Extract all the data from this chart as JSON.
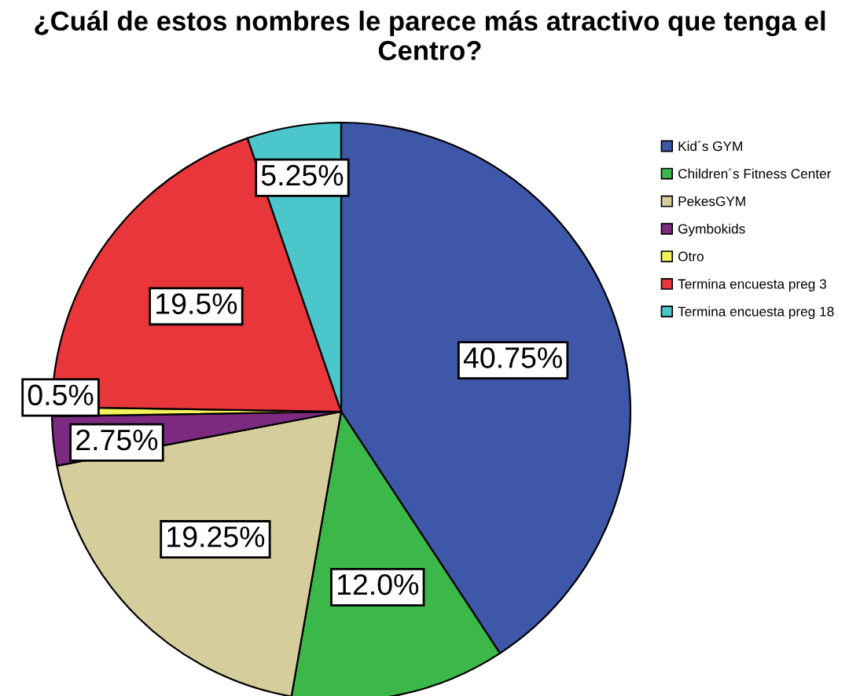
{
  "chart_data": {
    "type": "pie",
    "title": "¿Cuál de estos nombres le parece más atractivo que tenga el Centro?",
    "categories": [
      "Kid´s GYM",
      "Children´s Fitness Center",
      "PekesGYM",
      "Gymbokids",
      "Otro",
      "Termina encuesta preg 3",
      "Termina encuesta preg 18"
    ],
    "values": [
      40.75,
      12.0,
      19.25,
      2.75,
      0.5,
      19.5,
      5.25
    ],
    "value_labels": [
      "40.75%",
      "12.0%",
      "19.25%",
      "2.75%",
      "0.5%",
      "19.5%",
      "5.25%"
    ],
    "colors": [
      "#3f57a8",
      "#3cb74a",
      "#d5cd9b",
      "#7c2b80",
      "#f4f25a",
      "#e8363b",
      "#4bc6ca"
    ],
    "legend": "right"
  }
}
